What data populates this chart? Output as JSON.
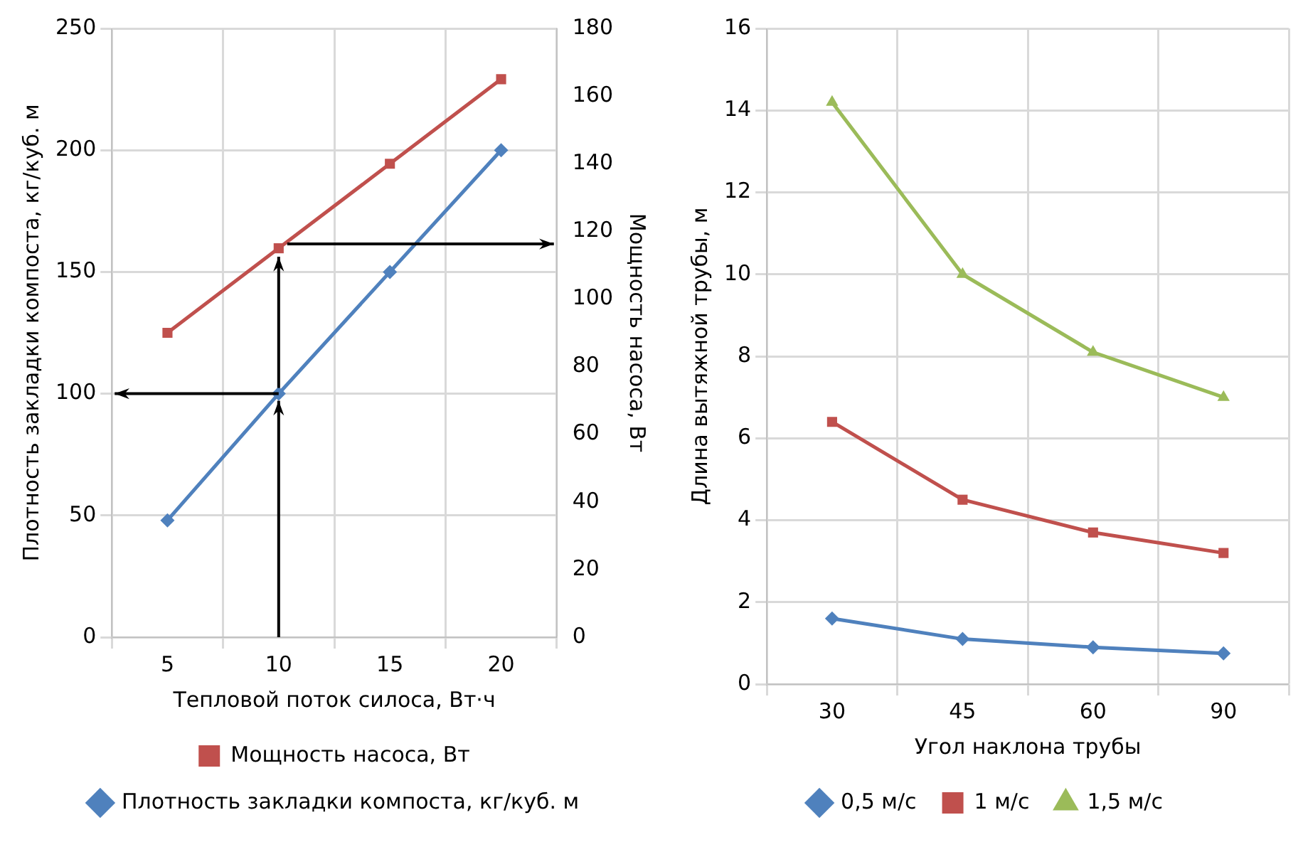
{
  "chart_data": [
    {
      "type": "line",
      "xlabel": "Тепловой поток силоса, Вт·ч",
      "ylabel": "Плотность закладки компоста, кг/куб. м",
      "y2label": "Мощность насоса, Вт",
      "categories": [
        "5",
        "10",
        "15",
        "20"
      ],
      "series": [
        {
          "name": "Мощность насоса, Вт",
          "color": "#c0504d",
          "values": [
            90,
            115,
            140,
            165
          ],
          "axis": "y2",
          "marker": "square"
        },
        {
          "name": "Плотность закладки компоста, кг/куб. м",
          "color": "#4f81bd",
          "values": [
            48,
            100,
            150,
            200
          ],
          "marker": "diamond"
        }
      ],
      "ylim": [
        0,
        250
      ],
      "yticks": [
        0,
        50,
        100,
        150,
        200,
        250
      ],
      "y2lim": [
        0,
        180
      ],
      "y2ticks": [
        0,
        20,
        40,
        60,
        80,
        100,
        120,
        140,
        160,
        180
      ],
      "grid": true,
      "legend": "bottom",
      "line_style": "solid"
    },
    {
      "type": "line",
      "xlabel": "Угол наклона трубы",
      "ylabel": "Длина вытяжной трубы, м",
      "categories": [
        "30",
        "45",
        "60",
        "90"
      ],
      "series": [
        {
          "name": "0,5 м/с",
          "color": "#4f81bd",
          "values": [
            1.6,
            1.1,
            0.9,
            0.75
          ],
          "marker": "diamond"
        },
        {
          "name": "1 м/с",
          "color": "#c0504d",
          "values": [
            6.4,
            4.5,
            3.7,
            3.2
          ],
          "marker": "square"
        },
        {
          "name": "1,5 м/с",
          "color": "#9bbb59",
          "values": [
            14.2,
            10,
            8.1,
            7
          ],
          "marker": "triangle"
        }
      ],
      "ylim": [
        0,
        16
      ],
      "yticks": [
        0,
        2,
        4,
        6,
        8,
        10,
        12,
        14,
        16
      ],
      "grid": true,
      "legend": "bottom",
      "line_style": "solid"
    }
  ]
}
